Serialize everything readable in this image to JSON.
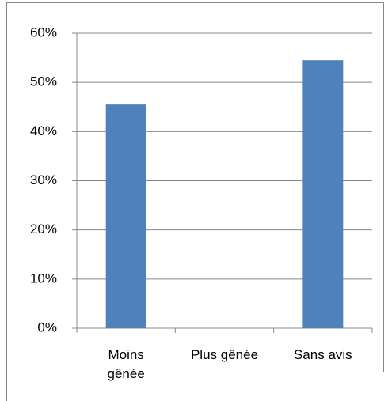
{
  "chart_data": {
    "type": "bar",
    "categories": [
      "Moins gênée",
      "Plus gênée",
      "Sans avis"
    ],
    "values": [
      45.5,
      0,
      54.5
    ],
    "color": "#4f81bd",
    "ylim": [
      0,
      60
    ],
    "yticks": [
      {
        "value": 0,
        "label": "0%"
      },
      {
        "value": 10,
        "label": "10%"
      },
      {
        "value": 20,
        "label": "20%"
      },
      {
        "value": 30,
        "label": "30%"
      },
      {
        "value": 40,
        "label": "40%"
      },
      {
        "value": 50,
        "label": "50%"
      },
      {
        "value": 60,
        "label": "60%"
      }
    ],
    "grid": true
  }
}
